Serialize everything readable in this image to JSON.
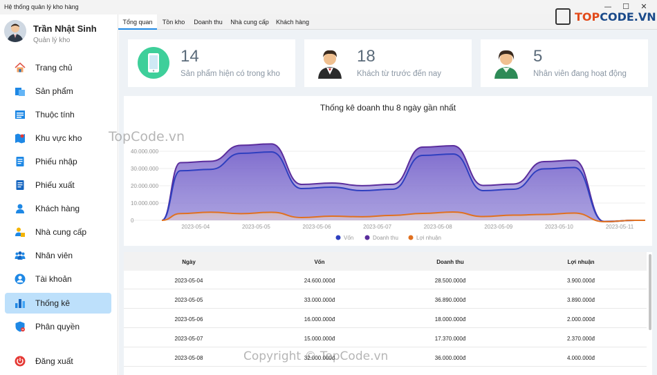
{
  "window": {
    "title": "Hệ thống quản lý kho hàng",
    "controls": [
      "—",
      "☐",
      "✕"
    ]
  },
  "profile": {
    "name": "Trần Nhật Sinh",
    "role": "Quản lý kho"
  },
  "sidebar": {
    "items": [
      {
        "label": "Trang chủ",
        "icon": "home-icon",
        "color": "#e0584b"
      },
      {
        "label": "Sản phẩm",
        "icon": "product-icon",
        "color": "#1e88e5"
      },
      {
        "label": "Thuộc tính",
        "icon": "attribute-icon",
        "color": "#1e88e5"
      },
      {
        "label": "Khu vực kho",
        "icon": "warehouse-map-icon",
        "color": "#1e88e5"
      },
      {
        "label": "Phiếu nhập",
        "icon": "import-note-icon",
        "color": "#1e88e5"
      },
      {
        "label": "Phiếu xuất",
        "icon": "export-note-icon",
        "color": "#1e88e5"
      },
      {
        "label": "Khách hàng",
        "icon": "customer-icon",
        "color": "#1e88e5"
      },
      {
        "label": "Nhà cung cấp",
        "icon": "supplier-icon",
        "color": "#1e88e5"
      },
      {
        "label": "Nhân viên",
        "icon": "staff-icon",
        "color": "#1e88e5"
      },
      {
        "label": "Tài khoản",
        "icon": "account-icon",
        "color": "#1e88e5"
      },
      {
        "label": "Thống kê",
        "icon": "statistics-icon",
        "color": "#1e88e5",
        "active": true
      },
      {
        "label": "Phân quyền",
        "icon": "permission-icon",
        "color": "#1e88e5"
      }
    ],
    "logout": {
      "label": "Đăng xuất",
      "icon": "power-icon",
      "color": "#e53935"
    }
  },
  "tabs": [
    {
      "label": "Tổng quan",
      "active": true
    },
    {
      "label": "Tồn kho"
    },
    {
      "label": "Doanh thu"
    },
    {
      "label": "Nhà cung cấp"
    },
    {
      "label": "Khách hàng"
    }
  ],
  "cards": [
    {
      "value": "14",
      "label": "Sản phẩm hiện có trong kho",
      "icon": "phone-icon",
      "color": "#3ecf9a"
    },
    {
      "value": "18",
      "label": "Khách từ trước đến nay",
      "icon": "customer-avatar-icon",
      "color": "#3a3a3a"
    },
    {
      "value": "5",
      "label": "Nhân viên đang hoạt động",
      "icon": "employee-avatar-icon",
      "color": "#2e8b57"
    }
  ],
  "chart_data": {
    "type": "area",
    "title": "Thống kê doanh thu 8 ngày gần nhất",
    "categories": [
      "2023-05-04",
      "2023-05-05",
      "2023-05-06",
      "2023-05-07",
      "2023-05-08",
      "2023-05-09",
      "2023-05-10",
      "2023-05-11"
    ],
    "y_ticks": [
      "0",
      "10.000.000",
      "20.000.000",
      "30.000.000",
      "40.000.000"
    ],
    "ylim": [
      0,
      40000000
    ],
    "series": [
      {
        "name": "Vốn",
        "color": "#2e3fbf",
        "values": [
          24600000,
          33000000,
          16000000,
          15000000,
          32000000,
          15000000,
          25500000,
          0
        ]
      },
      {
        "name": "Doanh thu",
        "color": "#5a2d9c",
        "values": [
          28500000,
          36890000,
          18000000,
          17370000,
          36000000,
          17500000,
          29000000,
          0
        ]
      },
      {
        "name": "Lợi nhuận",
        "color": "#e07020",
        "values": [
          3900000,
          3890000,
          2000000,
          2370000,
          4000000,
          2500000,
          3500000,
          0
        ]
      }
    ],
    "legend_position": "bottom",
    "grid": true
  },
  "table": {
    "headers": [
      "Ngày",
      "Vốn",
      "Doanh thu",
      "Lợi nhuận"
    ],
    "rows": [
      [
        "2023-05-04",
        "24.600.000đ",
        "28.500.000đ",
        "3.900.000đ"
      ],
      [
        "2023-05-05",
        "33.000.000đ",
        "36.890.000đ",
        "3.890.000đ"
      ],
      [
        "2023-05-06",
        "16.000.000đ",
        "18.000.000đ",
        "2.000.000đ"
      ],
      [
        "2023-05-07",
        "15.000.000đ",
        "17.370.000đ",
        "2.370.000đ"
      ],
      [
        "2023-05-08",
        "32.000.000đ",
        "36.000.000đ",
        "4.000.000đ"
      ]
    ]
  },
  "watermarks": {
    "logo_prefix": "TOP",
    "logo_suffix": "CODE.VN",
    "mid": "TopCode.vn",
    "bottom": "Copyright © TopCode.vn"
  }
}
